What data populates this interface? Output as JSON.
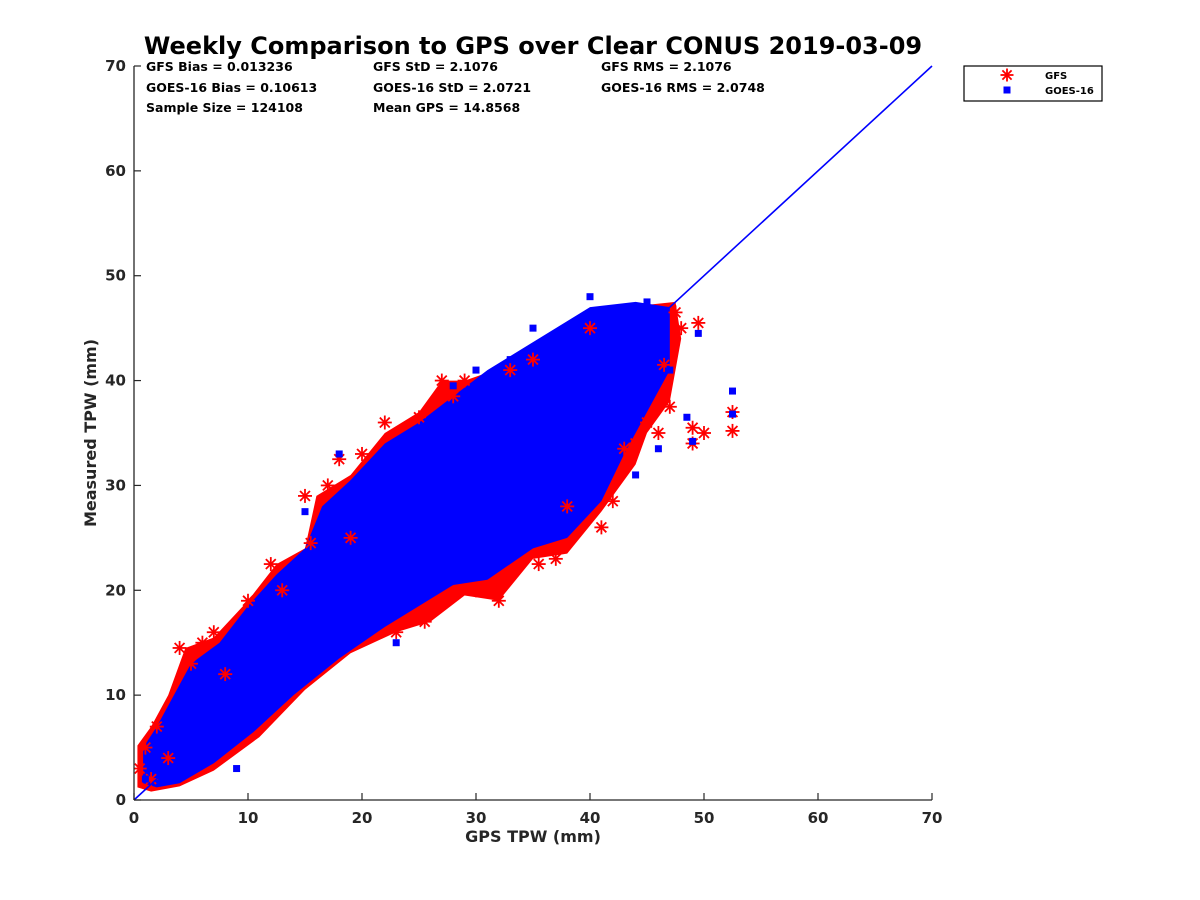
{
  "chart_data": {
    "type": "scatter",
    "title": "Weekly Comparison to GPS over Clear CONUS 2019-03-09",
    "xlabel": "GPS TPW (mm)",
    "ylabel": "Measured TPW (mm)",
    "xlim": [
      0,
      70
    ],
    "ylim": [
      0,
      70
    ],
    "xticks": [
      "0",
      "10",
      "20",
      "30",
      "40",
      "50",
      "60",
      "70"
    ],
    "yticks": [
      "0",
      "10",
      "20",
      "30",
      "40",
      "50",
      "60",
      "70"
    ],
    "stats": [
      [
        "GFS Bias = 0.013236",
        "GFS StD = 2.1076",
        "GFS RMS = 2.1076"
      ],
      [
        "GOES-16 Bias = 0.10613",
        "GOES-16 StD = 2.0721",
        "GOES-16 RMS = 2.0748"
      ],
      [
        "Sample Size = 124108",
        "Mean GPS = 14.8568"
      ]
    ],
    "legend_position": "outside-top-right",
    "series": [
      {
        "name": "GFS",
        "marker": "asterisk",
        "color": "#ff0000",
        "points": [
          [
            0.5,
            3
          ],
          [
            1,
            5
          ],
          [
            1.5,
            2
          ],
          [
            2,
            7
          ],
          [
            3,
            4
          ],
          [
            4,
            14.5
          ],
          [
            5,
            13
          ],
          [
            6,
            15
          ],
          [
            7,
            16
          ],
          [
            8,
            12
          ],
          [
            10,
            19
          ],
          [
            12,
            22.5
          ],
          [
            13,
            20
          ],
          [
            15,
            29
          ],
          [
            15.5,
            24.5
          ],
          [
            17,
            30
          ],
          [
            18,
            32.5
          ],
          [
            19,
            25
          ],
          [
            20,
            33
          ],
          [
            22,
            36
          ],
          [
            23,
            16
          ],
          [
            25,
            36.5
          ],
          [
            25.5,
            17
          ],
          [
            27,
            40
          ],
          [
            28,
            38.5
          ],
          [
            29,
            40
          ],
          [
            30,
            20
          ],
          [
            32,
            19
          ],
          [
            33,
            41
          ],
          [
            35,
            42
          ],
          [
            35.5,
            22.5
          ],
          [
            37,
            23
          ],
          [
            38,
            28
          ],
          [
            40,
            45
          ],
          [
            41,
            26
          ],
          [
            42,
            28.5
          ],
          [
            43,
            33.5
          ],
          [
            44,
            34
          ],
          [
            45,
            36
          ],
          [
            46,
            35
          ],
          [
            47,
            37.5
          ],
          [
            47.5,
            46.5
          ],
          [
            49,
            34
          ],
          [
            49.5,
            45.5
          ],
          [
            50,
            35
          ],
          [
            52.5,
            37
          ],
          [
            52.5,
            35.2
          ],
          [
            49,
            35.5
          ],
          [
            46.5,
            41.5
          ],
          [
            48,
            45
          ]
        ]
      },
      {
        "name": "GOES-16",
        "marker": "square",
        "color": "#0000ff",
        "points": [
          [
            1,
            2
          ],
          [
            2,
            4
          ],
          [
            3,
            6
          ],
          [
            4,
            5
          ],
          [
            5,
            8
          ],
          [
            6,
            9
          ],
          [
            8,
            11
          ],
          [
            9,
            3
          ],
          [
            10,
            14
          ],
          [
            11,
            18
          ],
          [
            12,
            15
          ],
          [
            14,
            17
          ],
          [
            15,
            27.5
          ],
          [
            16,
            20
          ],
          [
            18,
            33
          ],
          [
            19,
            22
          ],
          [
            20,
            26
          ],
          [
            22,
            29
          ],
          [
            23,
            15
          ],
          [
            24,
            30
          ],
          [
            26,
            33
          ],
          [
            27,
            27
          ],
          [
            28,
            39.5
          ],
          [
            29,
            31
          ],
          [
            30,
            41
          ],
          [
            31,
            34
          ],
          [
            32,
            35
          ],
          [
            33,
            42
          ],
          [
            34,
            36
          ],
          [
            35,
            45
          ],
          [
            36,
            30
          ],
          [
            37,
            44
          ],
          [
            38,
            38
          ],
          [
            39,
            37
          ],
          [
            40,
            48
          ],
          [
            41,
            40
          ],
          [
            42,
            42
          ],
          [
            43,
            45.5
          ],
          [
            44,
            40
          ],
          [
            45,
            47.5
          ],
          [
            46,
            46
          ],
          [
            47,
            41
          ],
          [
            48.5,
            36.5
          ],
          [
            49.5,
            44.5
          ],
          [
            52.5,
            39
          ],
          [
            52.5,
            36.8
          ],
          [
            49,
            34.2
          ],
          [
            46,
            33.5
          ],
          [
            44,
            31
          ]
        ]
      }
    ],
    "reference_line": {
      "from": [
        0,
        0
      ],
      "to": [
        70,
        70
      ],
      "color": "#0000ff"
    }
  }
}
